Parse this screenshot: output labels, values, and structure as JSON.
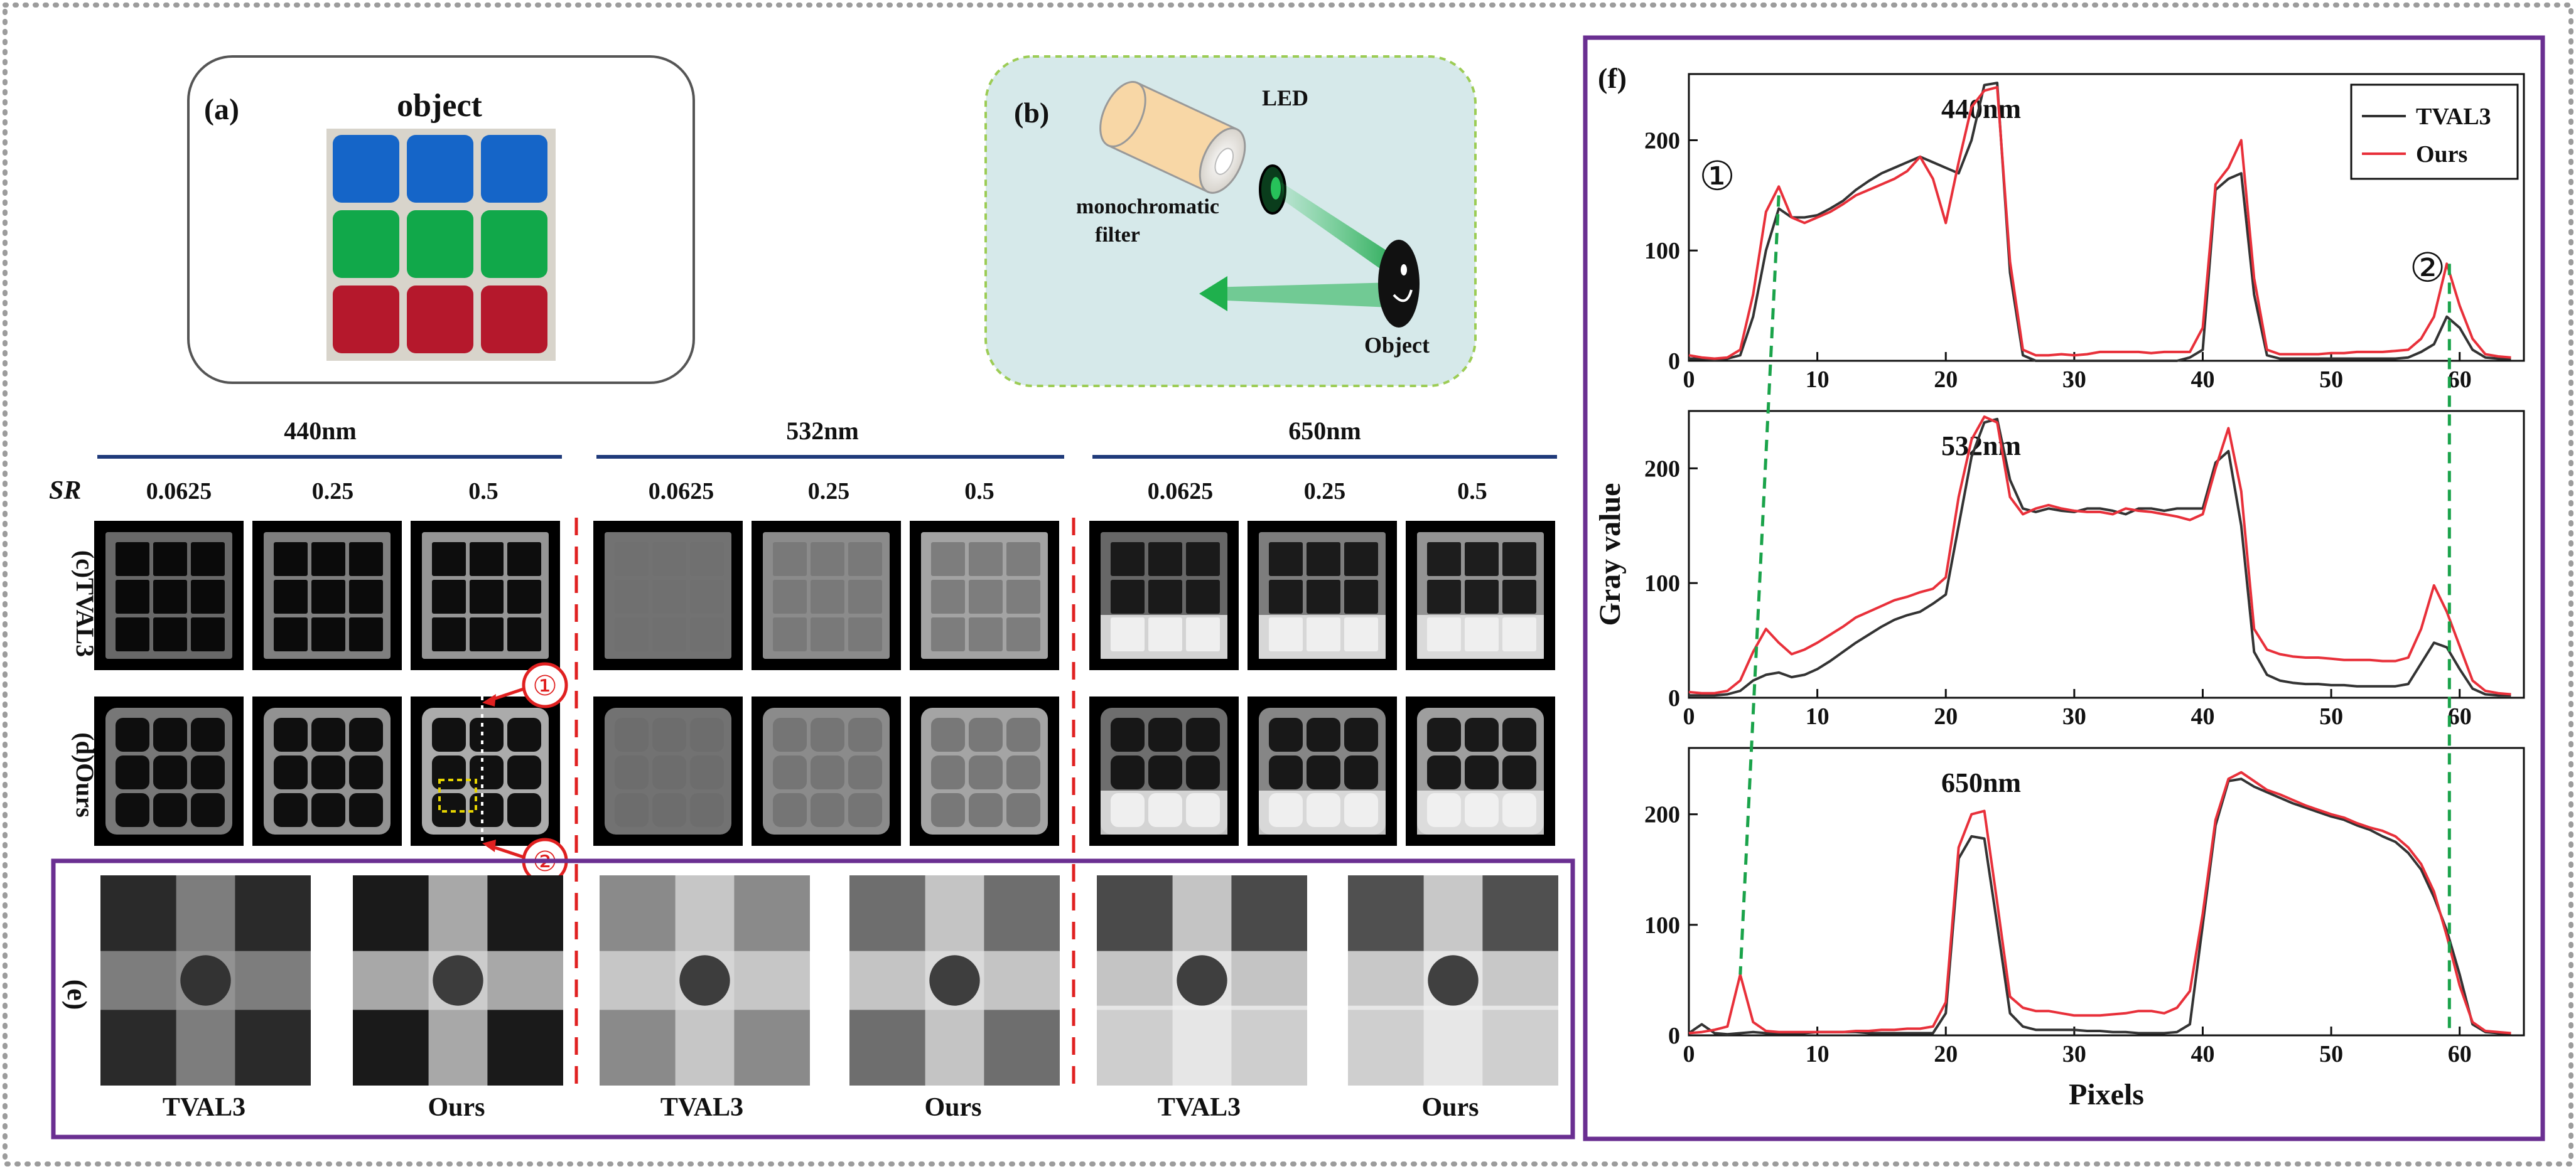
{
  "panel_a": {
    "label": "(a)",
    "title": "object"
  },
  "panel_b": {
    "label": "(b)",
    "led": "LED",
    "filter_line1": "monochromatic",
    "filter_line2": "filter",
    "object": "Object"
  },
  "wavelength_headers": [
    "440nm",
    "532nm",
    "650nm"
  ],
  "sr_label": "SR",
  "sr_values": [
    "0.0625",
    "0.25",
    "0.5"
  ],
  "row_labels": {
    "tval3": "(c)TVAL3",
    "ours": "(d)Ours",
    "e": "(e)"
  },
  "markers": [
    "①",
    "②"
  ],
  "zoom_labels": [
    "TVAL3",
    "Ours",
    "TVAL3",
    "Ours",
    "TVAL3",
    "Ours"
  ],
  "colors": {
    "tval3": "#333333",
    "ours": "#e8303a",
    "guide": "#1aa34a",
    "frame": "#6a2f91",
    "marker": "#e02020",
    "dots": "#999999",
    "wave_rule": "#1f3a7a"
  },
  "chart_data": [
    {
      "type": "line",
      "panel": "(f)",
      "title": "440nm",
      "xlim": [
        0,
        65
      ],
      "ylim": [
        0,
        260
      ],
      "xticks": [
        0,
        10,
        20,
        30,
        40,
        50,
        60
      ],
      "yticks": [
        0,
        100,
        200
      ],
      "legend": "top-right",
      "series": [
        {
          "name": "TVAL3",
          "x": [
            0,
            1,
            2,
            3,
            4,
            5,
            6,
            7,
            8,
            9,
            10,
            11,
            12,
            13,
            14,
            15,
            16,
            17,
            18,
            19,
            20,
            21,
            22,
            23,
            24,
            25,
            26,
            27,
            28,
            29,
            30,
            31,
            32,
            33,
            34,
            35,
            36,
            37,
            38,
            39,
            40,
            41,
            42,
            43,
            44,
            45,
            46,
            47,
            48,
            49,
            50,
            51,
            52,
            53,
            54,
            55,
            56,
            57,
            58,
            59,
            60,
            61,
            62,
            63,
            64
          ],
          "y": [
            2,
            2,
            1,
            2,
            5,
            40,
            100,
            138,
            130,
            130,
            132,
            138,
            145,
            155,
            163,
            170,
            175,
            180,
            185,
            180,
            175,
            170,
            200,
            250,
            252,
            80,
            5,
            0,
            0,
            0,
            0,
            0,
            0,
            0,
            0,
            0,
            0,
            0,
            0,
            3,
            10,
            155,
            165,
            170,
            60,
            5,
            2,
            2,
            2,
            2,
            2,
            2,
            2,
            2,
            2,
            2,
            3,
            8,
            15,
            40,
            30,
            10,
            3,
            2,
            2
          ]
        },
        {
          "name": "Ours",
          "x": [
            0,
            1,
            2,
            3,
            4,
            5,
            6,
            7,
            8,
            9,
            10,
            11,
            12,
            13,
            14,
            15,
            16,
            17,
            18,
            19,
            20,
            21,
            22,
            23,
            24,
            25,
            26,
            27,
            28,
            29,
            30,
            31,
            32,
            33,
            34,
            35,
            36,
            37,
            38,
            39,
            40,
            41,
            42,
            43,
            44,
            45,
            46,
            47,
            48,
            49,
            50,
            51,
            52,
            53,
            54,
            55,
            56,
            57,
            58,
            59,
            60,
            61,
            62,
            63,
            64
          ],
          "y": [
            5,
            3,
            2,
            3,
            10,
            60,
            135,
            158,
            130,
            125,
            130,
            135,
            142,
            150,
            155,
            160,
            165,
            172,
            185,
            165,
            125,
            180,
            230,
            245,
            248,
            90,
            10,
            5,
            5,
            6,
            5,
            6,
            8,
            8,
            8,
            8,
            7,
            8,
            8,
            8,
            30,
            160,
            175,
            200,
            75,
            10,
            6,
            6,
            6,
            6,
            7,
            7,
            8,
            8,
            8,
            9,
            10,
            20,
            40,
            88,
            50,
            20,
            6,
            4,
            3
          ]
        }
      ],
      "annotations": [
        "①",
        "②"
      ]
    },
    {
      "type": "line",
      "panel": "(f)",
      "title": "532nm",
      "xlim": [
        0,
        65
      ],
      "ylim": [
        0,
        250
      ],
      "xticks": [
        0,
        10,
        20,
        30,
        40,
        50,
        60
      ],
      "yticks": [
        0,
        100,
        200
      ],
      "ylabel": "Gray value",
      "series": [
        {
          "name": "TVAL3",
          "x": [
            0,
            1,
            2,
            3,
            4,
            5,
            6,
            7,
            8,
            9,
            10,
            11,
            12,
            13,
            14,
            15,
            16,
            17,
            18,
            19,
            20,
            21,
            22,
            23,
            24,
            25,
            26,
            27,
            28,
            29,
            30,
            31,
            32,
            33,
            34,
            35,
            36,
            37,
            38,
            39,
            40,
            41,
            42,
            43,
            44,
            45,
            46,
            47,
            48,
            49,
            50,
            51,
            52,
            53,
            54,
            55,
            56,
            57,
            58,
            59,
            60,
            61,
            62,
            63,
            64
          ],
          "y": [
            2,
            2,
            2,
            3,
            6,
            15,
            20,
            22,
            18,
            20,
            25,
            32,
            40,
            48,
            55,
            62,
            68,
            72,
            75,
            82,
            90,
            150,
            210,
            240,
            243,
            190,
            165,
            162,
            165,
            163,
            162,
            165,
            165,
            163,
            160,
            165,
            165,
            163,
            165,
            165,
            165,
            205,
            215,
            150,
            40,
            20,
            15,
            13,
            12,
            12,
            11,
            11,
            10,
            10,
            10,
            10,
            12,
            30,
            48,
            44,
            25,
            8,
            3,
            2,
            2
          ]
        },
        {
          "name": "Ours",
          "x": [
            0,
            1,
            2,
            3,
            4,
            5,
            6,
            7,
            8,
            9,
            10,
            11,
            12,
            13,
            14,
            15,
            16,
            17,
            18,
            19,
            20,
            21,
            22,
            23,
            24,
            25,
            26,
            27,
            28,
            29,
            30,
            31,
            32,
            33,
            34,
            35,
            36,
            37,
            38,
            39,
            40,
            41,
            42,
            43,
            44,
            45,
            46,
            47,
            48,
            49,
            50,
            51,
            52,
            53,
            54,
            55,
            56,
            57,
            58,
            59,
            60,
            61,
            62,
            63,
            64
          ],
          "y": [
            5,
            4,
            4,
            6,
            15,
            40,
            60,
            48,
            38,
            42,
            48,
            55,
            62,
            70,
            75,
            80,
            85,
            88,
            92,
            95,
            105,
            175,
            225,
            245,
            240,
            175,
            160,
            165,
            168,
            165,
            163,
            162,
            162,
            160,
            165,
            163,
            162,
            160,
            158,
            155,
            160,
            200,
            235,
            180,
            60,
            42,
            38,
            36,
            35,
            35,
            34,
            33,
            33,
            33,
            32,
            32,
            35,
            60,
            98,
            75,
            45,
            15,
            6,
            4,
            3
          ]
        }
      ]
    },
    {
      "type": "line",
      "panel": "(f)",
      "title": "650nm",
      "xlim": [
        0,
        65
      ],
      "ylim": [
        0,
        260
      ],
      "xticks": [
        0,
        10,
        20,
        30,
        40,
        50,
        60
      ],
      "yticks": [
        0,
        100,
        200
      ],
      "xlabel": "Pixels",
      "series": [
        {
          "name": "TVAL3",
          "x": [
            0,
            1,
            2,
            3,
            4,
            5,
            6,
            7,
            8,
            9,
            10,
            11,
            12,
            13,
            14,
            15,
            16,
            17,
            18,
            19,
            20,
            21,
            22,
            23,
            24,
            25,
            26,
            27,
            28,
            29,
            30,
            31,
            32,
            33,
            34,
            35,
            36,
            37,
            38,
            39,
            40,
            41,
            42,
            43,
            44,
            45,
            46,
            47,
            48,
            49,
            50,
            51,
            52,
            53,
            54,
            55,
            56,
            57,
            58,
            59,
            60,
            61,
            62,
            63,
            64
          ],
          "y": [
            2,
            10,
            2,
            1,
            2,
            3,
            2,
            2,
            2,
            2,
            3,
            3,
            3,
            3,
            2,
            2,
            2,
            2,
            2,
            2,
            20,
            160,
            180,
            178,
            100,
            20,
            8,
            5,
            5,
            5,
            5,
            4,
            4,
            3,
            3,
            2,
            2,
            2,
            3,
            10,
            100,
            190,
            230,
            232,
            225,
            220,
            215,
            210,
            206,
            202,
            198,
            195,
            190,
            186,
            180,
            175,
            165,
            150,
            125,
            95,
            55,
            10,
            3,
            2,
            2
          ]
        },
        {
          "name": "Ours",
          "x": [
            0,
            1,
            2,
            3,
            4,
            5,
            6,
            7,
            8,
            9,
            10,
            11,
            12,
            13,
            14,
            15,
            16,
            17,
            18,
            19,
            20,
            21,
            22,
            23,
            24,
            25,
            26,
            27,
            28,
            29,
            30,
            31,
            32,
            33,
            34,
            35,
            36,
            37,
            38,
            39,
            40,
            41,
            42,
            43,
            44,
            45,
            46,
            47,
            48,
            49,
            50,
            51,
            52,
            53,
            54,
            55,
            56,
            57,
            58,
            59,
            60,
            61,
            62,
            63,
            64
          ],
          "y": [
            2,
            3,
            5,
            8,
            55,
            12,
            4,
            3,
            3,
            3,
            3,
            3,
            3,
            4,
            4,
            5,
            5,
            6,
            6,
            8,
            30,
            170,
            200,
            203,
            120,
            35,
            25,
            22,
            22,
            20,
            18,
            18,
            18,
            19,
            20,
            22,
            22,
            20,
            25,
            40,
            110,
            195,
            232,
            238,
            230,
            222,
            218,
            213,
            208,
            204,
            200,
            197,
            192,
            188,
            185,
            180,
            170,
            155,
            130,
            90,
            45,
            12,
            4,
            3,
            2
          ]
        }
      ]
    }
  ]
}
